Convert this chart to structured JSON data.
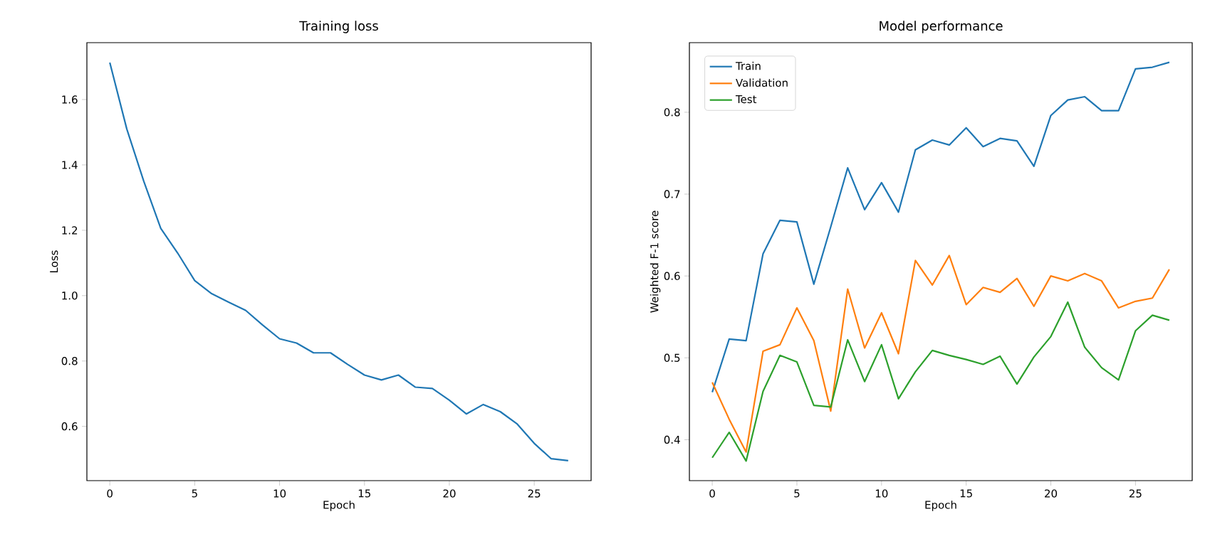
{
  "chart_data": [
    {
      "type": "line",
      "title": "Training loss",
      "xlabel": "Epoch",
      "ylabel": "Loss",
      "x": [
        0,
        1,
        2,
        3,
        4,
        5,
        6,
        7,
        8,
        9,
        10,
        11,
        12,
        13,
        14,
        15,
        16,
        17,
        18,
        19,
        20,
        21,
        22,
        23,
        24,
        25,
        26,
        27
      ],
      "series": [
        {
          "color": "#1f77b4",
          "values": [
            1.713,
            1.51,
            1.35,
            1.206,
            1.13,
            1.046,
            1.006,
            0.98,
            0.955,
            0.91,
            0.868,
            0.855,
            0.825,
            0.825,
            0.79,
            0.757,
            0.742,
            0.757,
            0.72,
            0.716,
            0.68,
            0.638,
            0.667,
            0.645,
            0.607,
            0.548,
            0.501,
            0.495
          ]
        }
      ],
      "xlim": [
        -1.35,
        28.35
      ],
      "ylim": [
        0.434,
        1.774
      ],
      "xticks": [
        0,
        5,
        10,
        15,
        20,
        25
      ],
      "yticks": [
        0.6,
        0.8,
        {
          "value": 1.0,
          "label": "1.0"
        },
        1.2,
        1.4,
        1.6
      ],
      "grid": false,
      "legend": false,
      "marker": "none",
      "line_style": "solid"
    },
    {
      "type": "line",
      "title": "Model performance",
      "xlabel": "Epoch",
      "ylabel": "Weighted F-1 score",
      "x": [
        0,
        1,
        2,
        3,
        4,
        5,
        6,
        7,
        8,
        9,
        10,
        11,
        12,
        13,
        14,
        15,
        16,
        17,
        18,
        19,
        20,
        21,
        22,
        23,
        24,
        25,
        26,
        27
      ],
      "series": [
        {
          "name": "Train",
          "color": "#1f77b4",
          "values": [
            0.458,
            0.523,
            0.521,
            0.627,
            0.668,
            0.666,
            0.59,
            0.66,
            0.732,
            0.681,
            0.714,
            0.678,
            0.754,
            0.766,
            0.76,
            0.781,
            0.758,
            0.768,
            0.765,
            0.734,
            0.796,
            0.815,
            0.819,
            0.802,
            0.802,
            0.853,
            0.855,
            0.861
          ]
        },
        {
          "name": "Validation",
          "color": "#ff7f0e",
          "values": [
            0.47,
            0.425,
            0.385,
            0.508,
            0.516,
            0.561,
            0.521,
            0.435,
            0.584,
            0.512,
            0.555,
            0.505,
            0.619,
            0.589,
            0.625,
            0.565,
            0.586,
            0.58,
            0.597,
            0.563,
            0.6,
            0.594,
            0.603,
            0.594,
            0.561,
            0.569,
            0.573,
            0.608
          ]
        },
        {
          "name": "Test",
          "color": "#2ca02c",
          "values": [
            0.378,
            0.409,
            0.374,
            0.459,
            0.503,
            0.495,
            0.442,
            0.44,
            0.522,
            0.471,
            0.516,
            0.45,
            0.483,
            0.509,
            0.503,
            0.498,
            0.492,
            0.502,
            0.468,
            0.501,
            0.526,
            0.568,
            0.513,
            0.488,
            0.473,
            0.533,
            0.552,
            0.546
          ]
        }
      ],
      "xlim": [
        -1.35,
        28.35
      ],
      "ylim": [
        0.35,
        0.885
      ],
      "xticks": [
        0,
        5,
        10,
        15,
        20,
        25
      ],
      "yticks": [
        0.4,
        0.5,
        0.6,
        0.7,
        0.8
      ],
      "grid": false,
      "legend": "top left",
      "marker": "none",
      "line_style": "solid"
    }
  ]
}
